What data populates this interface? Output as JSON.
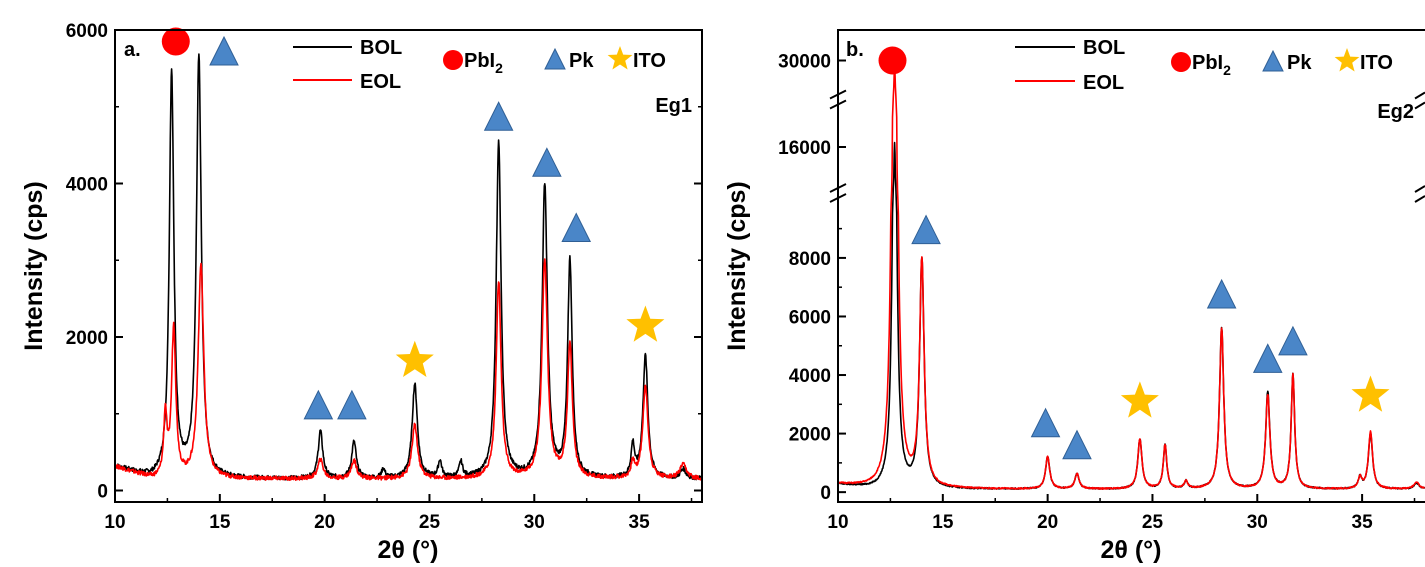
{
  "figure": {
    "colors": {
      "bol": "#000000",
      "eol": "#ff0000",
      "pbi2": "#ff0000",
      "pk": "#4a86c8",
      "pk_edge": "#2f5f95",
      "ito": "#ffc000"
    },
    "icons": {
      "pbi2": "circle",
      "pk": "triangle",
      "ito": "star"
    }
  },
  "chart_data": [
    {
      "type": "line",
      "panel_label": "a.",
      "tag": "Eg1",
      "xlabel": "2θ (°)",
      "ylabel": "Intensity (cps)",
      "xlim": [
        10,
        38
      ],
      "ylim": [
        -150,
        6000
      ],
      "xticks": [
        10,
        15,
        20,
        25,
        30,
        35
      ],
      "yticks": [
        0,
        2000,
        4000,
        6000
      ],
      "legend": {
        "lines": [
          "BOL",
          "EOL"
        ],
        "markers": [
          {
            "name_main": "PbI",
            "name_sub": "2",
            "icon": "circle"
          },
          {
            "name_main": "Pk",
            "name_sub": "",
            "icon": "triangle"
          },
          {
            "name_main": "ITO",
            "name_sub": "",
            "icon": "star"
          }
        ],
        "placement": "top"
      },
      "series": [
        {
          "name": "BOL",
          "color": "#000000",
          "baseline": 150,
          "peaks": [
            [
              12.7,
              5300,
              0.13
            ],
            [
              14.0,
              5500,
              0.14
            ],
            [
              19.8,
              620,
              0.13
            ],
            [
              21.4,
              480,
              0.13
            ],
            [
              22.8,
              120,
              0.1
            ],
            [
              24.3,
              1230,
              0.15
            ],
            [
              25.5,
              220,
              0.1
            ],
            [
              26.5,
              200,
              0.1
            ],
            [
              28.3,
              4380,
              0.14
            ],
            [
              30.5,
              3820,
              0.15
            ],
            [
              31.7,
              2820,
              0.13
            ],
            [
              34.7,
              420,
              0.1
            ],
            [
              35.3,
              1600,
              0.14
            ],
            [
              37.1,
              120,
              0.15
            ]
          ]
        },
        {
          "name": "EOL",
          "color": "#ff0000",
          "baseline": 150,
          "peaks": [
            [
              12.4,
              800,
              0.09
            ],
            [
              12.8,
              1950,
              0.12
            ],
            [
              14.1,
              2780,
              0.16
            ],
            [
              19.8,
              250,
              0.15
            ],
            [
              21.4,
              240,
              0.15
            ],
            [
              24.3,
              700,
              0.16
            ],
            [
              28.3,
              2560,
              0.14
            ],
            [
              30.5,
              2820,
              0.16
            ],
            [
              31.7,
              1730,
              0.14
            ],
            [
              34.7,
              200,
              0.1
            ],
            [
              35.3,
              1200,
              0.15
            ],
            [
              37.1,
              180,
              0.18
            ]
          ]
        }
      ],
      "markers": [
        {
          "type": "circle",
          "x": 12.9,
          "y": 5850
        },
        {
          "type": "triangle",
          "x": 15.2,
          "y": 5700
        },
        {
          "type": "triangle",
          "x": 19.7,
          "y": 1090
        },
        {
          "type": "triangle",
          "x": 21.3,
          "y": 1090
        },
        {
          "type": "star",
          "x": 24.3,
          "y": 1690
        },
        {
          "type": "triangle",
          "x": 28.3,
          "y": 4850
        },
        {
          "type": "triangle",
          "x": 30.6,
          "y": 4250
        },
        {
          "type": "triangle",
          "x": 32.0,
          "y": 3400
        },
        {
          "type": "star",
          "x": 35.3,
          "y": 2150
        }
      ]
    },
    {
      "type": "line",
      "panel_label": "b.",
      "tag": "Eg2",
      "xlabel": "2θ (°)",
      "ylabel": "Intensity (cps)",
      "xlim": [
        10,
        38
      ],
      "y_scale": "broken",
      "y_segments": [
        [
          -200,
          9500
        ],
        [
          15000,
          17000
        ],
        [
          29000,
          31000
        ]
      ],
      "yticks": [
        0,
        2000,
        4000,
        6000,
        8000,
        16000,
        30000
      ],
      "xticks": [
        10,
        15,
        20,
        25,
        30,
        35
      ],
      "legend": {
        "lines": [
          "BOL",
          "EOL"
        ],
        "markers": [
          {
            "name_main": "PbI",
            "name_sub": "2",
            "icon": "circle"
          },
          {
            "name_main": "Pk",
            "name_sub": "",
            "icon": "triangle"
          },
          {
            "name_main": "ITO",
            "name_sub": "",
            "icon": "star"
          }
        ],
        "placement": "top"
      },
      "series": [
        {
          "name": "BOL",
          "color": "#000000",
          "baseline": 100,
          "peaks": [
            [
              12.7,
              16000,
              0.12
            ],
            [
              14.0,
              7800,
              0.13
            ],
            [
              20.0,
              1100,
              0.12
            ],
            [
              21.4,
              520,
              0.12
            ],
            [
              24.4,
              1700,
              0.12
            ],
            [
              25.6,
              1500,
              0.1
            ],
            [
              26.6,
              250,
              0.1
            ],
            [
              28.3,
              5500,
              0.12
            ],
            [
              30.5,
              3300,
              0.12
            ],
            [
              31.7,
              3900,
              0.1
            ],
            [
              34.9,
              380,
              0.1
            ],
            [
              35.4,
              1900,
              0.12
            ],
            [
              37.6,
              200,
              0.15
            ]
          ]
        },
        {
          "name": "EOL",
          "color": "#ff0000",
          "baseline": 100,
          "peaks": [
            [
              12.7,
              30000,
              0.12
            ],
            [
              14.0,
              7700,
              0.13
            ],
            [
              20.0,
              1100,
              0.12
            ],
            [
              21.4,
              520,
              0.12
            ],
            [
              24.4,
              1700,
              0.12
            ],
            [
              25.6,
              1500,
              0.1
            ],
            [
              26.6,
              250,
              0.1
            ],
            [
              28.3,
              5500,
              0.12
            ],
            [
              30.5,
              3200,
              0.12
            ],
            [
              31.7,
              3900,
              0.1
            ],
            [
              34.9,
              380,
              0.1
            ],
            [
              35.4,
              1950,
              0.12
            ],
            [
              37.6,
              250,
              0.15
            ]
          ]
        }
      ],
      "markers": [
        {
          "type": "circle",
          "x": 12.6,
          "y": 30000
        },
        {
          "type": "triangle",
          "x": 14.2,
          "y": 8900
        },
        {
          "type": "triangle",
          "x": 19.9,
          "y": 2300
        },
        {
          "type": "triangle",
          "x": 21.4,
          "y": 1550
        },
        {
          "type": "star",
          "x": 24.4,
          "y": 3100
        },
        {
          "type": "triangle",
          "x": 28.3,
          "y": 6700
        },
        {
          "type": "triangle",
          "x": 30.5,
          "y": 4500
        },
        {
          "type": "triangle",
          "x": 31.7,
          "y": 5100
        },
        {
          "type": "star",
          "x": 35.4,
          "y": 3300
        }
      ]
    }
  ]
}
